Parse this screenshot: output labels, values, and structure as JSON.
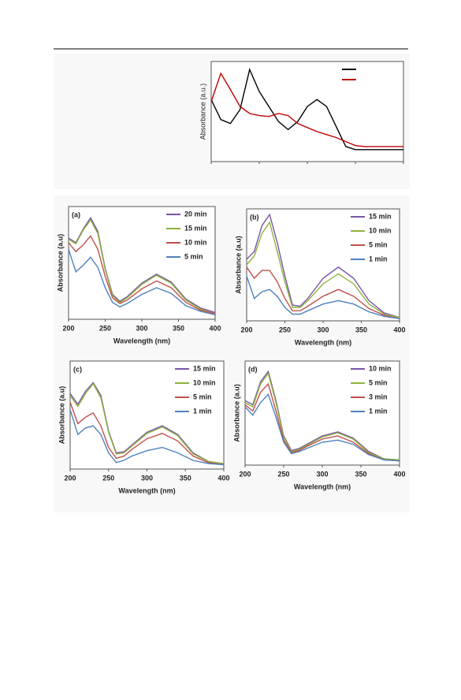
{
  "chart_data": [
    {
      "type": "line",
      "ylabel": "Absorbance (a.u.)",
      "xlim": [
        0,
        100
      ],
      "ylim": [
        0,
        1
      ],
      "legend": "upper right",
      "x": [
        0,
        5,
        10,
        15,
        20,
        25,
        30,
        35,
        40,
        45,
        50,
        55,
        60,
        65,
        70,
        75,
        80,
        85,
        90,
        95,
        100
      ],
      "series": [
        {
          "color": "#000000",
          "values": [
            0.62,
            0.42,
            0.38,
            0.52,
            0.92,
            0.7,
            0.55,
            0.4,
            0.32,
            0.4,
            0.55,
            0.62,
            0.55,
            0.35,
            0.15,
            0.12,
            0.12,
            0.12,
            0.12,
            0.12,
            0.12
          ]
        },
        {
          "color": "#c00000",
          "values": [
            0.6,
            0.88,
            0.72,
            0.55,
            0.48,
            0.46,
            0.45,
            0.48,
            0.46,
            0.38,
            0.34,
            0.3,
            0.27,
            0.24,
            0.2,
            0.16,
            0.15,
            0.15,
            0.15,
            0.15,
            0.15
          ]
        }
      ]
    },
    {
      "type": "line",
      "title": "(a)",
      "xlabel": "Wavelength (nm)",
      "ylabel": "Absorbance (a.u)",
      "xlim": [
        200,
        400
      ],
      "ylim": [
        0,
        1
      ],
      "xticks": [
        200,
        250,
        300,
        350,
        400
      ],
      "legend": "upper right",
      "x": [
        200,
        210,
        220,
        230,
        240,
        250,
        260,
        270,
        280,
        300,
        320,
        340,
        360,
        380,
        400
      ],
      "series": [
        {
          "name": "20 min",
          "color": "#7a55a8",
          "values": [
            0.72,
            0.68,
            0.8,
            0.9,
            0.78,
            0.45,
            0.22,
            0.16,
            0.2,
            0.32,
            0.4,
            0.33,
            0.18,
            0.1,
            0.06
          ]
        },
        {
          "name": "15 min",
          "color": "#8db33a",
          "values": [
            0.71,
            0.67,
            0.79,
            0.88,
            0.76,
            0.44,
            0.21,
            0.15,
            0.19,
            0.31,
            0.39,
            0.32,
            0.17,
            0.09,
            0.05
          ]
        },
        {
          "name": "10 min",
          "color": "#c0504d",
          "values": [
            0.68,
            0.6,
            0.66,
            0.74,
            0.62,
            0.38,
            0.19,
            0.14,
            0.17,
            0.27,
            0.34,
            0.28,
            0.15,
            0.08,
            0.05
          ]
        },
        {
          "name": "5 min",
          "color": "#4f81bd",
          "values": [
            0.62,
            0.42,
            0.48,
            0.55,
            0.46,
            0.28,
            0.15,
            0.11,
            0.14,
            0.22,
            0.28,
            0.23,
            0.12,
            0.07,
            0.04
          ]
        }
      ]
    },
    {
      "type": "line",
      "title": "(b)",
      "xlabel": "Wavelength (nm)",
      "ylabel": "Absorbance (a.u)",
      "xlim": [
        200,
        400
      ],
      "ylim": [
        0,
        1
      ],
      "xticks": [
        200,
        250,
        300,
        350,
        400
      ],
      "legend": "upper right",
      "x": [
        200,
        210,
        220,
        230,
        240,
        250,
        260,
        270,
        280,
        300,
        320,
        340,
        360,
        380,
        400
      ],
      "series": [
        {
          "name": "15 min",
          "color": "#7a55a8",
          "values": [
            0.55,
            0.62,
            0.85,
            0.95,
            0.7,
            0.4,
            0.14,
            0.13,
            0.2,
            0.38,
            0.48,
            0.38,
            0.18,
            0.07,
            0.03
          ]
        },
        {
          "name": "10 min",
          "color": "#8db33a",
          "values": [
            0.5,
            0.58,
            0.78,
            0.88,
            0.62,
            0.35,
            0.12,
            0.12,
            0.18,
            0.33,
            0.42,
            0.33,
            0.15,
            0.06,
            0.03
          ]
        },
        {
          "name": "5 min",
          "color": "#c0504d",
          "values": [
            0.48,
            0.38,
            0.45,
            0.45,
            0.35,
            0.2,
            0.09,
            0.09,
            0.13,
            0.22,
            0.28,
            0.22,
            0.11,
            0.05,
            0.02
          ]
        },
        {
          "name": "1 min",
          "color": "#4f81bd",
          "values": [
            0.4,
            0.2,
            0.26,
            0.28,
            0.22,
            0.12,
            0.06,
            0.06,
            0.09,
            0.15,
            0.18,
            0.15,
            0.08,
            0.04,
            0.02
          ]
        }
      ]
    },
    {
      "type": "line",
      "title": "(c)",
      "xlabel": "Wavelength (nm)",
      "ylabel": "Absorbance (a.u)",
      "xlim": [
        200,
        400
      ],
      "ylim": [
        0,
        1
      ],
      "xticks": [
        200,
        250,
        300,
        350,
        400
      ],
      "legend": "upper right",
      "x": [
        200,
        210,
        220,
        230,
        240,
        250,
        260,
        270,
        280,
        300,
        320,
        340,
        360,
        380,
        400
      ],
      "series": [
        {
          "name": "15 min",
          "color": "#7a55a8",
          "values": [
            0.7,
            0.6,
            0.72,
            0.8,
            0.68,
            0.35,
            0.15,
            0.16,
            0.22,
            0.34,
            0.4,
            0.32,
            0.15,
            0.07,
            0.05
          ]
        },
        {
          "name": "10 min",
          "color": "#8db33a",
          "values": [
            0.68,
            0.58,
            0.7,
            0.79,
            0.66,
            0.34,
            0.14,
            0.15,
            0.21,
            0.33,
            0.39,
            0.31,
            0.14,
            0.07,
            0.05
          ]
        },
        {
          "name": "5 min",
          "color": "#c0504d",
          "values": [
            0.62,
            0.42,
            0.48,
            0.52,
            0.4,
            0.2,
            0.1,
            0.12,
            0.18,
            0.28,
            0.33,
            0.26,
            0.12,
            0.06,
            0.04
          ]
        },
        {
          "name": "1 min",
          "color": "#4f81bd",
          "values": [
            0.55,
            0.32,
            0.38,
            0.4,
            0.32,
            0.15,
            0.06,
            0.08,
            0.12,
            0.17,
            0.2,
            0.15,
            0.08,
            0.05,
            0.04
          ]
        }
      ]
    },
    {
      "type": "line",
      "title": "(d)",
      "xlabel": "Wavelength (nm)",
      "ylabel": "Absorbance (a.u)",
      "xlim": [
        200,
        400
      ],
      "ylim": [
        0,
        1
      ],
      "xticks": [
        200,
        250,
        300,
        350,
        400
      ],
      "legend": "upper right",
      "x": [
        200,
        210,
        220,
        230,
        240,
        250,
        260,
        270,
        280,
        300,
        320,
        340,
        360,
        380,
        400
      ],
      "series": [
        {
          "name": "10 min",
          "color": "#7a55a8",
          "values": [
            0.62,
            0.58,
            0.8,
            0.9,
            0.62,
            0.28,
            0.14,
            0.16,
            0.2,
            0.28,
            0.32,
            0.26,
            0.13,
            0.06,
            0.05
          ]
        },
        {
          "name": "5 min",
          "color": "#8db33a",
          "values": [
            0.6,
            0.56,
            0.78,
            0.88,
            0.6,
            0.27,
            0.13,
            0.15,
            0.19,
            0.27,
            0.31,
            0.25,
            0.12,
            0.06,
            0.05
          ]
        },
        {
          "name": "3 min",
          "color": "#c0504d",
          "values": [
            0.58,
            0.52,
            0.7,
            0.78,
            0.52,
            0.24,
            0.12,
            0.14,
            0.18,
            0.25,
            0.28,
            0.22,
            0.11,
            0.05,
            0.04
          ]
        },
        {
          "name": "1 min",
          "color": "#4f81bd",
          "values": [
            0.56,
            0.48,
            0.6,
            0.68,
            0.46,
            0.22,
            0.11,
            0.13,
            0.16,
            0.22,
            0.24,
            0.2,
            0.1,
            0.05,
            0.04
          ]
        }
      ]
    }
  ]
}
